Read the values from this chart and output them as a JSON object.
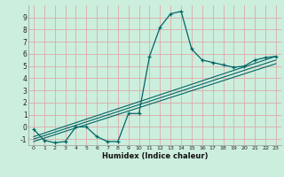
{
  "xlabel": "Humidex (Indice chaleur)",
  "bg_color": "#cceedd",
  "grid_color": "#ddaaaa",
  "line_color": "#006666",
  "xlim": [
    -0.5,
    23.5
  ],
  "ylim": [
    -1.5,
    10.0
  ],
  "xticks": [
    0,
    1,
    2,
    3,
    4,
    5,
    6,
    7,
    8,
    9,
    10,
    11,
    12,
    13,
    14,
    15,
    16,
    17,
    18,
    19,
    20,
    21,
    22,
    23
  ],
  "yticks": [
    -1,
    0,
    1,
    2,
    3,
    4,
    5,
    6,
    7,
    8,
    9
  ],
  "line1_x": [
    0,
    1,
    2,
    3,
    4,
    5,
    6,
    7,
    8,
    9,
    10,
    11,
    12,
    13,
    14,
    15,
    16,
    17,
    18,
    19,
    20,
    21,
    22,
    23
  ],
  "line1_y": [
    -0.2,
    -1.1,
    -1.3,
    -1.2,
    0.0,
    0.0,
    -0.8,
    -1.2,
    -1.2,
    1.1,
    1.1,
    5.8,
    8.2,
    9.3,
    9.5,
    6.4,
    5.5,
    5.3,
    5.1,
    4.9,
    5.0,
    5.5,
    5.7,
    5.8
  ],
  "line2_x": [
    0,
    23
  ],
  "line2_y": [
    -0.8,
    5.8
  ],
  "line3_x": [
    0,
    23
  ],
  "line3_y": [
    -1.0,
    5.5
  ],
  "line4_x": [
    0,
    23
  ],
  "line4_y": [
    -1.2,
    5.2
  ]
}
